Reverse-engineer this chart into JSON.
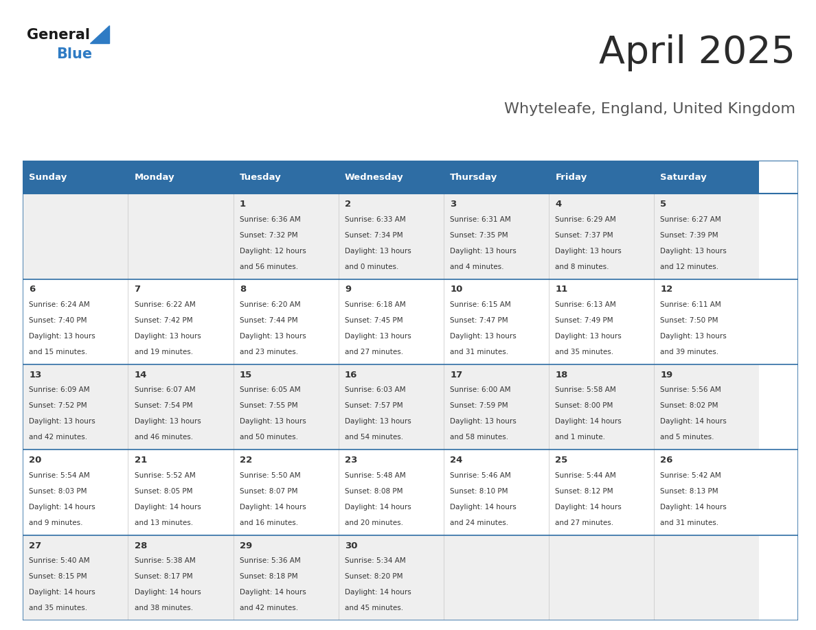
{
  "title": "April 2025",
  "subtitle": "Whyteleafe, England, United Kingdom",
  "header_bg": "#2e6da4",
  "header_text_color": "#ffffff",
  "days_of_week": [
    "Sunday",
    "Monday",
    "Tuesday",
    "Wednesday",
    "Thursday",
    "Friday",
    "Saturday"
  ],
  "row_bg_odd": "#efefef",
  "row_bg_even": "#ffffff",
  "cell_border_color": "#2e6da4",
  "text_color": "#333333",
  "title_color": "#2b2b2b",
  "subtitle_color": "#555555",
  "logo_general_color": "#1a1a1a",
  "logo_blue_color": "#2e7bc4",
  "calendar_data": [
    [
      null,
      null,
      {
        "day": "1",
        "sunrise": "6:36 AM",
        "sunset": "7:32 PM",
        "daylight": "12 hours",
        "daylight2": "and 56 minutes."
      },
      {
        "day": "2",
        "sunrise": "6:33 AM",
        "sunset": "7:34 PM",
        "daylight": "13 hours",
        "daylight2": "and 0 minutes."
      },
      {
        "day": "3",
        "sunrise": "6:31 AM",
        "sunset": "7:35 PM",
        "daylight": "13 hours",
        "daylight2": "and 4 minutes."
      },
      {
        "day": "4",
        "sunrise": "6:29 AM",
        "sunset": "7:37 PM",
        "daylight": "13 hours",
        "daylight2": "and 8 minutes."
      },
      {
        "day": "5",
        "sunrise": "6:27 AM",
        "sunset": "7:39 PM",
        "daylight": "13 hours",
        "daylight2": "and 12 minutes."
      }
    ],
    [
      {
        "day": "6",
        "sunrise": "6:24 AM",
        "sunset": "7:40 PM",
        "daylight": "13 hours",
        "daylight2": "and 15 minutes."
      },
      {
        "day": "7",
        "sunrise": "6:22 AM",
        "sunset": "7:42 PM",
        "daylight": "13 hours",
        "daylight2": "and 19 minutes."
      },
      {
        "day": "8",
        "sunrise": "6:20 AM",
        "sunset": "7:44 PM",
        "daylight": "13 hours",
        "daylight2": "and 23 minutes."
      },
      {
        "day": "9",
        "sunrise": "6:18 AM",
        "sunset": "7:45 PM",
        "daylight": "13 hours",
        "daylight2": "and 27 minutes."
      },
      {
        "day": "10",
        "sunrise": "6:15 AM",
        "sunset": "7:47 PM",
        "daylight": "13 hours",
        "daylight2": "and 31 minutes."
      },
      {
        "day": "11",
        "sunrise": "6:13 AM",
        "sunset": "7:49 PM",
        "daylight": "13 hours",
        "daylight2": "and 35 minutes."
      },
      {
        "day": "12",
        "sunrise": "6:11 AM",
        "sunset": "7:50 PM",
        "daylight": "13 hours",
        "daylight2": "and 39 minutes."
      }
    ],
    [
      {
        "day": "13",
        "sunrise": "6:09 AM",
        "sunset": "7:52 PM",
        "daylight": "13 hours",
        "daylight2": "and 42 minutes."
      },
      {
        "day": "14",
        "sunrise": "6:07 AM",
        "sunset": "7:54 PM",
        "daylight": "13 hours",
        "daylight2": "and 46 minutes."
      },
      {
        "day": "15",
        "sunrise": "6:05 AM",
        "sunset": "7:55 PM",
        "daylight": "13 hours",
        "daylight2": "and 50 minutes."
      },
      {
        "day": "16",
        "sunrise": "6:03 AM",
        "sunset": "7:57 PM",
        "daylight": "13 hours",
        "daylight2": "and 54 minutes."
      },
      {
        "day": "17",
        "sunrise": "6:00 AM",
        "sunset": "7:59 PM",
        "daylight": "13 hours",
        "daylight2": "and 58 minutes."
      },
      {
        "day": "18",
        "sunrise": "5:58 AM",
        "sunset": "8:00 PM",
        "daylight": "14 hours",
        "daylight2": "and 1 minute."
      },
      {
        "day": "19",
        "sunrise": "5:56 AM",
        "sunset": "8:02 PM",
        "daylight": "14 hours",
        "daylight2": "and 5 minutes."
      }
    ],
    [
      {
        "day": "20",
        "sunrise": "5:54 AM",
        "sunset": "8:03 PM",
        "daylight": "14 hours",
        "daylight2": "and 9 minutes."
      },
      {
        "day": "21",
        "sunrise": "5:52 AM",
        "sunset": "8:05 PM",
        "daylight": "14 hours",
        "daylight2": "and 13 minutes."
      },
      {
        "day": "22",
        "sunrise": "5:50 AM",
        "sunset": "8:07 PM",
        "daylight": "14 hours",
        "daylight2": "and 16 minutes."
      },
      {
        "day": "23",
        "sunrise": "5:48 AM",
        "sunset": "8:08 PM",
        "daylight": "14 hours",
        "daylight2": "and 20 minutes."
      },
      {
        "day": "24",
        "sunrise": "5:46 AM",
        "sunset": "8:10 PM",
        "daylight": "14 hours",
        "daylight2": "and 24 minutes."
      },
      {
        "day": "25",
        "sunrise": "5:44 AM",
        "sunset": "8:12 PM",
        "daylight": "14 hours",
        "daylight2": "and 27 minutes."
      },
      {
        "day": "26",
        "sunrise": "5:42 AM",
        "sunset": "8:13 PM",
        "daylight": "14 hours",
        "daylight2": "and 31 minutes."
      }
    ],
    [
      {
        "day": "27",
        "sunrise": "5:40 AM",
        "sunset": "8:15 PM",
        "daylight": "14 hours",
        "daylight2": "and 35 minutes."
      },
      {
        "day": "28",
        "sunrise": "5:38 AM",
        "sunset": "8:17 PM",
        "daylight": "14 hours",
        "daylight2": "and 38 minutes."
      },
      {
        "day": "29",
        "sunrise": "5:36 AM",
        "sunset": "8:18 PM",
        "daylight": "14 hours",
        "daylight2": "and 42 minutes."
      },
      {
        "day": "30",
        "sunrise": "5:34 AM",
        "sunset": "8:20 PM",
        "daylight": "14 hours",
        "daylight2": "and 45 minutes."
      },
      null,
      null,
      null
    ]
  ]
}
